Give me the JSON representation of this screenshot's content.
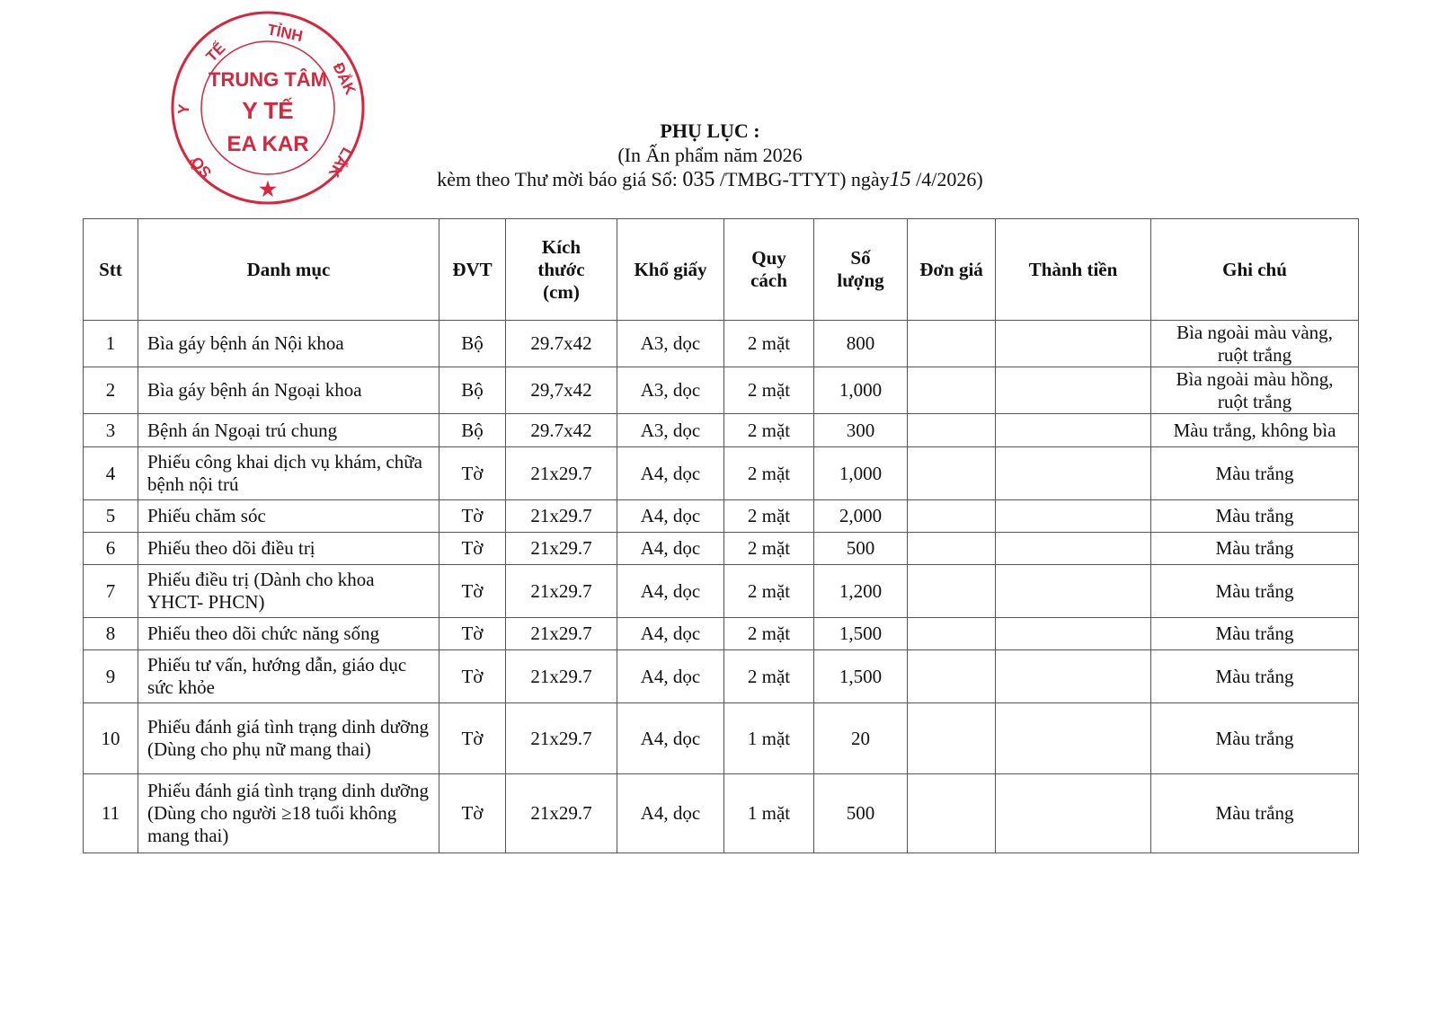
{
  "stamp": {
    "outer_top": "TỈNH",
    "outer_left_top": "Y TẾ",
    "outer_left": "Y",
    "outer_left_bottom": "SỞ",
    "outer_right_top": "ĐẮK",
    "outer_right_bottom": "LẮK",
    "center_line1": "TRUNG TÂM",
    "center_line2": "Y TẾ",
    "center_line3": "EA KAR",
    "color": "#d7263d"
  },
  "header": {
    "title": "PHỤ LỤC :",
    "subtitle": "(In Ấn phẩm năm 2026",
    "ref_prefix": "kèm theo Thư mời báo giá Số:",
    "ref_number": "035",
    "ref_mid": "/TMBG-TTYT) ngày",
    "ref_day": "15",
    "ref_suffix": "/4/2026)"
  },
  "table": {
    "columns": [
      "Stt",
      "Danh mục",
      "ĐVT",
      "Kích thước (cm)",
      "Khổ giấy",
      "Quy cách",
      "Số lượng",
      "Đơn giá",
      "Thành tiền",
      "Ghi chú"
    ],
    "rows": [
      {
        "stt": "1",
        "name": "Bìa gáy bệnh án Nội khoa",
        "unit": "Bộ",
        "size": "29.7x42",
        "paper": "A3, dọc",
        "spec": "2 mặt",
        "qty": "800",
        "price": "",
        "total": "",
        "note": "Bìa ngoài màu vàng, ruột trắng"
      },
      {
        "stt": "2",
        "name": "Bìa gáy bệnh án Ngoại khoa",
        "unit": "Bộ",
        "size": "29,7x42",
        "paper": "A3, dọc",
        "spec": "2 mặt",
        "qty": "1,000",
        "price": "",
        "total": "",
        "note": "Bìa ngoài màu hồng, ruột trắng"
      },
      {
        "stt": "3",
        "name": "Bệnh án Ngoại trú chung",
        "unit": "Bộ",
        "size": "29.7x42",
        "paper": "A3, dọc",
        "spec": "2 mặt",
        "qty": "300",
        "price": "",
        "total": "",
        "note": "Màu trắng, không bìa"
      },
      {
        "stt": "4",
        "name": "Phiếu công khai dịch vụ khám, chữa bệnh nội trú",
        "unit": "Tờ",
        "size": "21x29.7",
        "paper": "A4, dọc",
        "spec": "2 mặt",
        "qty": "1,000",
        "price": "",
        "total": "",
        "note": "Màu trắng"
      },
      {
        "stt": "5",
        "name": "Phiếu chăm sóc",
        "unit": "Tờ",
        "size": "21x29.7",
        "paper": "A4, dọc",
        "spec": "2 mặt",
        "qty": "2,000",
        "price": "",
        "total": "",
        "note": "Màu trắng"
      },
      {
        "stt": "6",
        "name": "Phiếu theo dõi điều trị",
        "unit": "Tờ",
        "size": "21x29.7",
        "paper": "A4, dọc",
        "spec": "2 mặt",
        "qty": "500",
        "price": "",
        "total": "",
        "note": "Màu trắng"
      },
      {
        "stt": "7",
        "name": "Phiếu điều trị (Dành cho khoa YHCT- PHCN)",
        "unit": "Tờ",
        "size": "21x29.7",
        "paper": "A4, dọc",
        "spec": "2 mặt",
        "qty": "1,200",
        "price": "",
        "total": "",
        "note": "Màu trắng"
      },
      {
        "stt": "8",
        "name": "Phiếu theo dõi chức năng sống",
        "unit": "Tờ",
        "size": "21x29.7",
        "paper": "A4, dọc",
        "spec": "2 mặt",
        "qty": "1,500",
        "price": "",
        "total": "",
        "note": "Màu trắng"
      },
      {
        "stt": "9",
        "name": "Phiếu tư vấn, hướng dẫn, giáo dục sức khỏe",
        "unit": "Tờ",
        "size": "21x29.7",
        "paper": "A4, dọc",
        "spec": "2 mặt",
        "qty": "1,500",
        "price": "",
        "total": "",
        "note": "Màu trắng"
      },
      {
        "stt": "10",
        "name": "Phiếu đánh giá tình trạng dinh dưỡng (Dùng cho phụ nữ mang thai)",
        "unit": "Tờ",
        "size": "21x29.7",
        "paper": "A4, dọc",
        "spec": "1 mặt",
        "qty": "20",
        "price": "",
        "total": "",
        "note": "Màu trắng"
      },
      {
        "stt": "11",
        "name": "Phiếu đánh giá tình trạng dinh dưỡng (Dùng cho người ≥18 tuổi không mang thai)",
        "unit": "Tờ",
        "size": "21x29.7",
        "paper": "A4, dọc",
        "spec": "1 mặt",
        "qty": "500",
        "price": "",
        "total": "",
        "note": "Màu trắng"
      }
    ]
  }
}
